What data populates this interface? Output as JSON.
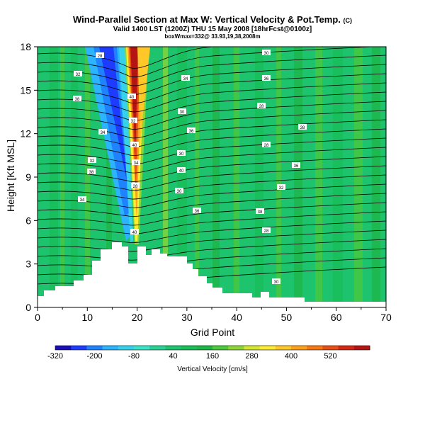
{
  "chart_data": {
    "type": "heatmap",
    "title": "Wind-Parallel Section at Max W: Vertical Velocity & Pot.Temp.",
    "title_mark": "(C)",
    "subtitle": "Valid 1400 LST (1200Z) THU 15 May 2008 [18hrFcst@0100z]",
    "subtitle2": "boxWmax=332@ 33.93,19,38,2008m",
    "xlabel": "Grid Point",
    "ylabel": "Height [Kft MSL]",
    "xlim": [
      0,
      70
    ],
    "ylim": [
      0,
      18
    ],
    "xticks": [
      "0",
      "10",
      "20",
      "30",
      "40",
      "50",
      "60",
      "70"
    ],
    "yticks": [
      "0",
      "3",
      "6",
      "9",
      "12",
      "15",
      "18"
    ],
    "colorbar": {
      "label": "Vertical Velocity [cm/s]",
      "tick_labels": [
        "-320",
        "-200",
        "-80",
        "40",
        "160",
        "280",
        "400",
        "520"
      ],
      "colors": [
        "#1a0fb4",
        "#1e3cff",
        "#1f82ff",
        "#2cb4ff",
        "#36d2ea",
        "#3ce3c4",
        "#2ad296",
        "#1ec36e",
        "#19be58",
        "#1eb446",
        "#4cc83c",
        "#8cd737",
        "#d2e632",
        "#ffeb32",
        "#ffc828",
        "#ffa01e",
        "#f57814",
        "#e65014",
        "#d22814",
        "#b41414"
      ]
    },
    "contour_labels": [
      "28",
      "30",
      "32",
      "34",
      "36",
      "38",
      "40"
    ]
  },
  "colors": {
    "background_field": "#1ec36e",
    "terrain": "#ffffff",
    "contour": "#000000"
  }
}
